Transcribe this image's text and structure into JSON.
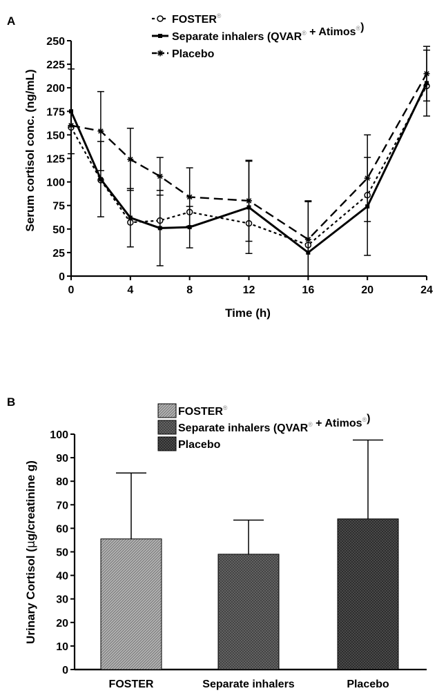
{
  "chart_data": [
    {
      "panel": "A",
      "type": "line",
      "xlabel": "Time (h)",
      "ylabel": "Serum cortisol conc. (ng/mL)",
      "xlim": [
        0,
        24
      ],
      "ylim": [
        0,
        250
      ],
      "xticks": [
        "0",
        "4",
        "8",
        "12",
        "16",
        "20",
        "24"
      ],
      "xtick_values": [
        0,
        4,
        8,
        12,
        16,
        20,
        24
      ],
      "yticks": [
        "0",
        "25",
        "50",
        "75",
        "100",
        "125",
        "150",
        "175",
        "200",
        "225",
        "250"
      ],
      "ytick_values": [
        0,
        25,
        50,
        75,
        100,
        125,
        150,
        175,
        200,
        225,
        250
      ],
      "registered_mark": "®",
      "legend": [
        {
          "text": "FOSTER",
          "reg": true,
          "suffix": "",
          "style": "dotted-circle"
        },
        {
          "text": "Separate inhalers (QVAR",
          "reg": true,
          "suffix": " + Atimos",
          "reg2": true,
          "end": ")",
          "style": "solid-square"
        },
        {
          "text": "Placebo",
          "reg": false,
          "suffix": "",
          "style": "dashed-star"
        }
      ],
      "series": [
        {
          "name": "FOSTER",
          "x": [
            0,
            2,
            4,
            6,
            8,
            12,
            16,
            20,
            24
          ],
          "y": [
            158,
            102,
            57,
            59,
            68,
            56,
            33,
            86,
            202
          ],
          "err": [
            0,
            0,
            0,
            0,
            0,
            0,
            0,
            0,
            0
          ]
        },
        {
          "name": "Separate inhalers (QVAR + Atimos)",
          "x": [
            0,
            2,
            4,
            6,
            8,
            12,
            16,
            20,
            24
          ],
          "y": [
            175,
            103,
            62,
            51,
            52,
            73,
            25,
            74,
            205
          ],
          "err": [
            45,
            40,
            31,
            40,
            22,
            49,
            54,
            52,
            35
          ]
        },
        {
          "name": "Placebo",
          "x": [
            0,
            2,
            4,
            6,
            8,
            12,
            16,
            20,
            24
          ],
          "y": [
            160,
            154,
            124,
            106,
            84,
            80,
            39,
            104,
            215
          ],
          "err": [
            0,
            42,
            33,
            20,
            31,
            43,
            41,
            46,
            29
          ]
        }
      ]
    },
    {
      "panel": "B",
      "type": "bar",
      "xlabel": "",
      "ylabel_prefix": "Urinary Cortisol (",
      "ylabel_mu": "μ",
      "ylabel_suffix": "g/creatinine g)",
      "ylim": [
        0,
        100
      ],
      "yticks": [
        "0",
        "10",
        "20",
        "30",
        "40",
        "50",
        "60",
        "70",
        "80",
        "90",
        "100"
      ],
      "ytick_values": [
        0,
        10,
        20,
        30,
        40,
        50,
        60,
        70,
        80,
        90,
        100
      ],
      "categories": [
        "FOSTER",
        "Separate inhalers",
        "Placebo"
      ],
      "values": [
        55.5,
        49,
        64
      ],
      "errors": [
        28,
        14.5,
        33.5
      ],
      "legend": [
        {
          "text": "FOSTER",
          "reg": true,
          "suffix": "",
          "fill": "#a8a8a8"
        },
        {
          "text": "Separate inhalers (QVAR",
          "reg": true,
          "suffix": " + Atimos",
          "reg2": true,
          "end": ")",
          "fill": "#5e5e5e"
        },
        {
          "text": "Placebo",
          "reg": false,
          "suffix": "",
          "fill": "#4a4a4a"
        }
      ]
    }
  ]
}
